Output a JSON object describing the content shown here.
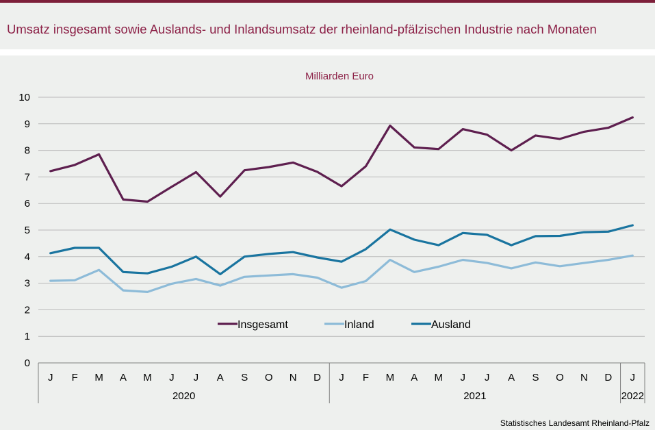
{
  "header": {
    "title": "Umsatz insgesamt sowie Auslands- und Inlandsumsatz der rheinland-pfälzischen Industrie nach Monaten"
  },
  "footer": {
    "source": "Statistisches Landesamt Rheinland-Pfalz"
  },
  "colors": {
    "accent": "#8c2147",
    "insgesamt": "#5e1f4f",
    "inland": "#8dbbd8",
    "ausland": "#19749f",
    "grid": "#b9b9b9",
    "background": "#eef0ee"
  },
  "chart_data": {
    "type": "line",
    "title": "Umsatz insgesamt sowie Auslands- und Inlandsumsatz der rheinland-pfälzischen Industrie nach Monaten",
    "unit_label": "Milliarden Euro",
    "categories": [
      "J",
      "F",
      "M",
      "A",
      "M",
      "J",
      "J",
      "A",
      "S",
      "O",
      "N",
      "D",
      "J",
      "F",
      "M",
      "A",
      "M",
      "J",
      "J",
      "A",
      "S",
      "O",
      "N",
      "D",
      "J"
    ],
    "year_groups": [
      {
        "label": "2020",
        "count": 12
      },
      {
        "label": "2021",
        "count": 12
      },
      {
        "label": "2022",
        "count": 1
      }
    ],
    "ylim": [
      0,
      10
    ],
    "yticks": [
      0,
      1,
      2,
      3,
      4,
      5,
      6,
      7,
      8,
      9,
      10
    ],
    "grid": true,
    "legend_position": "center",
    "series": [
      {
        "name": "Insgesamt",
        "color": "#5e1f4f",
        "values": [
          7.22,
          7.45,
          7.85,
          6.15,
          6.07,
          6.63,
          7.18,
          6.26,
          7.25,
          7.37,
          7.54,
          7.19,
          6.65,
          7.4,
          8.93,
          8.11,
          8.05,
          8.8,
          8.59,
          8.0,
          8.56,
          8.43,
          8.7,
          8.85,
          9.24
        ]
      },
      {
        "name": "Inland",
        "color": "#8dbbd8",
        "values": [
          3.09,
          3.11,
          3.5,
          2.73,
          2.67,
          2.98,
          3.16,
          2.91,
          3.24,
          3.29,
          3.34,
          3.21,
          2.83,
          3.08,
          3.88,
          3.42,
          3.62,
          3.88,
          3.76,
          3.56,
          3.78,
          3.64,
          3.76,
          3.88,
          4.04
        ]
      },
      {
        "name": "Ausland",
        "color": "#19749f",
        "values": [
          4.13,
          4.33,
          4.33,
          3.42,
          3.37,
          3.62,
          4.0,
          3.34,
          4.0,
          4.1,
          4.17,
          3.97,
          3.81,
          4.28,
          5.02,
          4.64,
          4.43,
          4.89,
          4.82,
          4.43,
          4.77,
          4.78,
          4.92,
          4.94,
          5.18
        ]
      }
    ]
  }
}
